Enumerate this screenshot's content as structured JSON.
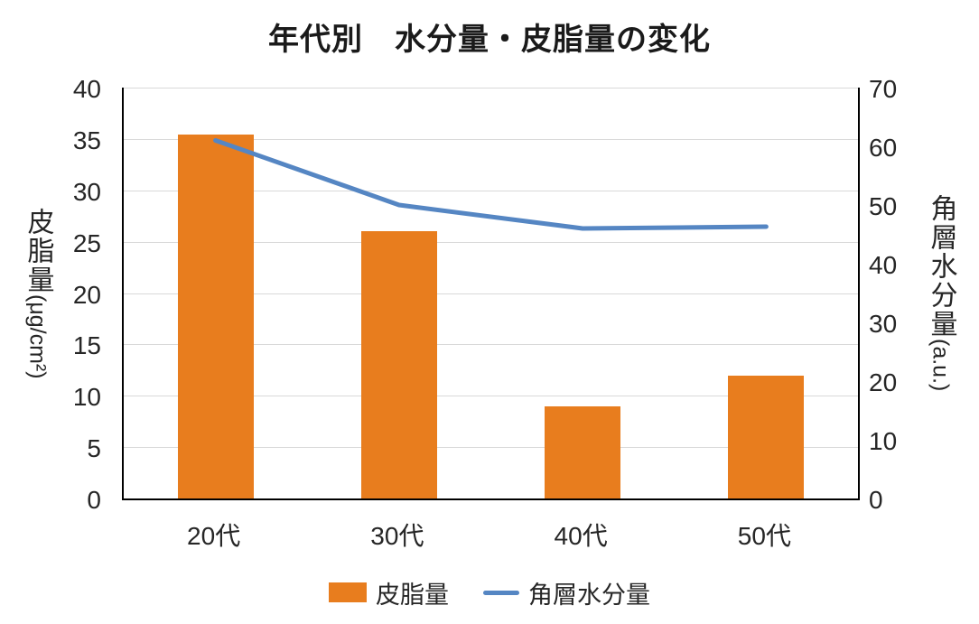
{
  "title": "年代別　水分量・皮脂量の変化",
  "chart_data": {
    "type": "combo",
    "categories": [
      "20代",
      "30代",
      "40代",
      "50代"
    ],
    "series": [
      {
        "name": "皮脂量",
        "type": "bar",
        "axis": "left",
        "color": "#E87D1E",
        "values": [
          35.4,
          26,
          9,
          12
        ]
      },
      {
        "name": "角層水分量",
        "type": "line",
        "axis": "right",
        "color": "#5586C3",
        "values": [
          61,
          50,
          46,
          46.3
        ]
      }
    ],
    "left_axis": {
      "label": "皮脂量(μg/cm²)",
      "label_cjk": "皮脂量",
      "label_unit": "(μg/cm²)",
      "min": 0,
      "max": 40,
      "step": 5,
      "ticks": [
        "40",
        "35",
        "30",
        "25",
        "20",
        "15",
        "10",
        "5",
        "0"
      ]
    },
    "right_axis": {
      "label": "角層水分量(a.u.)",
      "label_cjk": "角層水分量",
      "label_unit": "(a.u.)",
      "min": 0,
      "max": 70,
      "step": 10,
      "ticks": [
        "70",
        "60",
        "50",
        "40",
        "30",
        "20",
        "10",
        "0"
      ]
    },
    "legend": {
      "position": "bottom",
      "entries": [
        "皮脂量",
        "角層水分量"
      ]
    },
    "grid": {
      "horizontal": true,
      "follows": "left_axis",
      "color": "#D9D9D9"
    }
  },
  "colors": {
    "bar": "#E87D1E",
    "line": "#5586C3",
    "grid": "#D9D9D9",
    "axis": "#000000",
    "text": "#262626",
    "background": "#FFFFFF"
  }
}
